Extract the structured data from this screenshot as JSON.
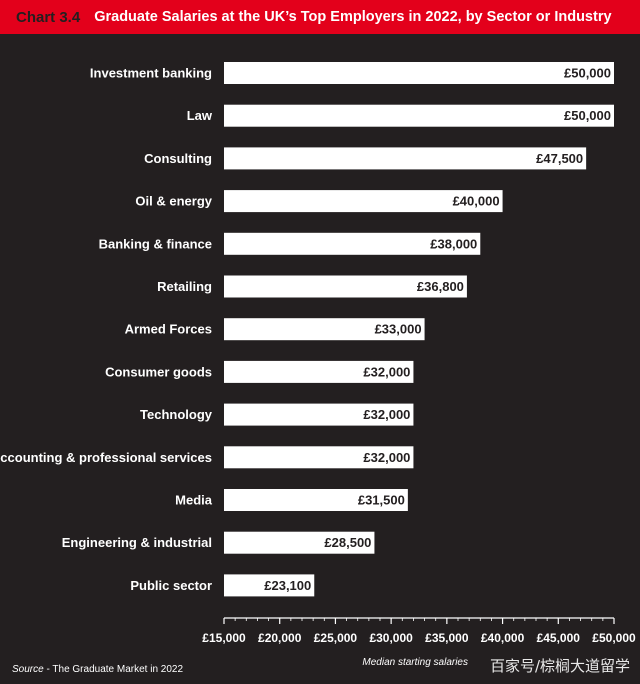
{
  "header": {
    "chart_number": "Chart 3.4",
    "title": "Graduate Salaries at the UK’s Top Employers in 2022, by Sector or Industry"
  },
  "colors": {
    "background": "#231f20",
    "title_bar": "#e3001b",
    "bar": "#ffffff",
    "text": "#ffffff"
  },
  "chart_data": {
    "type": "bar",
    "orientation": "horizontal",
    "title": "Graduate Salaries at the UK’s Top Employers in 2022, by Sector or Industry",
    "xlabel": "Median starting salaries",
    "ylabel": "",
    "xlim": [
      15000,
      50000
    ],
    "grid": false,
    "categories": [
      "Investment banking",
      "Law",
      "Consulting",
      "Oil & energy",
      "Banking & finance",
      "Retailing",
      "Armed Forces",
      "Consumer goods",
      "Technology",
      "Accounting & professional services",
      "Media",
      "Engineering & industrial",
      "Public sector"
    ],
    "values": [
      50000,
      50000,
      47500,
      40000,
      38000,
      36800,
      33000,
      32000,
      32000,
      32000,
      31500,
      28500,
      23100
    ],
    "value_labels": [
      "£50,000",
      "£50,000",
      "£47,500",
      "£40,000",
      "£38,000",
      "£36,800",
      "£33,000",
      "£32,000",
      "£32,000",
      "£32,000",
      "£31,500",
      "£28,500",
      "£23,100"
    ],
    "ticks": [
      15000,
      20000,
      25000,
      30000,
      35000,
      40000,
      45000,
      50000
    ],
    "tick_labels": [
      "£15,000",
      "£20,000",
      "£25,000",
      "£30,000",
      "£35,000",
      "£40,000",
      "£45,000",
      "£50,000"
    ]
  },
  "footer": {
    "source_key": "Source",
    "source_text": " - The Graduate Market in 2022",
    "watermark": "百家号/棕榈大道留学"
  }
}
